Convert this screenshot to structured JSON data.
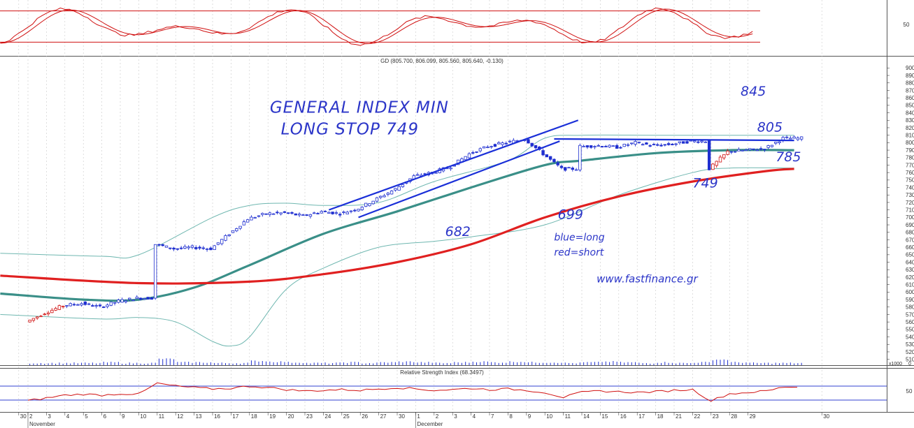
{
  "chart_data": {
    "type": "candlestick",
    "main": {
      "header": "GD (805.700, 806.099, 805.560, 805.640, -0.130)",
      "ylim": [
        505,
        905
      ],
      "yticks": [
        510,
        520,
        530,
        540,
        550,
        560,
        570,
        580,
        590,
        600,
        610,
        620,
        630,
        640,
        650,
        660,
        670,
        680,
        690,
        700,
        710,
        720,
        730,
        740,
        750,
        760,
        770,
        780,
        790,
        800,
        810,
        820,
        830,
        840,
        850,
        860,
        870,
        880,
        890,
        900
      ],
      "price_path": [
        {
          "day": 0,
          "v": 560
        },
        {
          "day": 1,
          "v": 572
        },
        {
          "day": 2,
          "v": 582
        },
        {
          "day": 3,
          "v": 585
        },
        {
          "day": 4,
          "v": 580
        },
        {
          "day": 5,
          "v": 588
        },
        {
          "day": 6,
          "v": 592
        },
        {
          "day": 7,
          "v": 664
        },
        {
          "day": 8,
          "v": 658
        },
        {
          "day": 9,
          "v": 660
        },
        {
          "day": 10,
          "v": 658
        },
        {
          "day": 11,
          "v": 678
        },
        {
          "day": 12,
          "v": 698
        },
        {
          "day": 13,
          "v": 705
        },
        {
          "day": 14,
          "v": 706
        },
        {
          "day": 15,
          "v": 702
        },
        {
          "day": 16,
          "v": 708
        },
        {
          "day": 17,
          "v": 705
        },
        {
          "day": 18,
          "v": 712
        },
        {
          "day": 19,
          "v": 725
        },
        {
          "day": 20,
          "v": 738
        },
        {
          "day": 21,
          "v": 755
        },
        {
          "day": 22,
          "v": 760
        },
        {
          "day": 23,
          "v": 768
        },
        {
          "day": 24,
          "v": 785
        },
        {
          "day": 25,
          "v": 795
        },
        {
          "day": 26,
          "v": 800
        },
        {
          "day": 27,
          "v": 805
        },
        {
          "day": 28,
          "v": 785
        },
        {
          "day": 29,
          "v": 765
        },
        {
          "day": 30,
          "v": 795
        },
        {
          "day": 31,
          "v": 796
        },
        {
          "day": 32,
          "v": 794
        },
        {
          "day": 33,
          "v": 800
        },
        {
          "day": 34,
          "v": 796
        },
        {
          "day": 35,
          "v": 798
        },
        {
          "day": 36,
          "v": 802
        },
        {
          "day": 37,
          "v": 765
        },
        {
          "day": 38,
          "v": 788
        },
        {
          "day": 39,
          "v": 790
        },
        {
          "day": 40,
          "v": 792
        },
        {
          "day": 41,
          "v": 806
        }
      ],
      "red_days": [
        0,
        1,
        37
      ],
      "teal_ma": [
        [
          -1.5,
          598
        ],
        [
          3,
          590
        ],
        [
          6,
          590
        ],
        [
          9,
          606
        ],
        [
          12,
          636
        ],
        [
          16,
          678
        ],
        [
          20,
          708
        ],
        [
          24,
          740
        ],
        [
          28,
          770
        ],
        [
          30,
          776
        ],
        [
          34,
          786
        ],
        [
          38,
          790
        ],
        [
          41.5,
          790
        ]
      ],
      "red_ma": [
        [
          -1.5,
          622
        ],
        [
          6,
          612
        ],
        [
          12,
          614
        ],
        [
          16,
          624
        ],
        [
          20,
          640
        ],
        [
          24,
          664
        ],
        [
          28,
          700
        ],
        [
          32,
          728
        ],
        [
          36,
          748
        ],
        [
          40,
          762
        ],
        [
          41.5,
          765
        ]
      ],
      "upper_band": [
        [
          -1.5,
          652
        ],
        [
          4,
          648
        ],
        [
          6,
          650
        ],
        [
          10,
          700
        ],
        [
          12,
          716
        ],
        [
          14,
          719
        ],
        [
          16,
          716
        ],
        [
          19,
          720
        ],
        [
          22,
          748
        ],
        [
          26,
          776
        ],
        [
          28,
          806
        ],
        [
          30,
          810
        ],
        [
          34,
          810
        ],
        [
          38,
          810
        ],
        [
          41.5,
          810
        ]
      ],
      "lower_band": [
        [
          -1.5,
          570
        ],
        [
          4,
          564
        ],
        [
          6,
          566
        ],
        [
          8,
          560
        ],
        [
          10,
          534
        ],
        [
          11,
          528
        ],
        [
          12,
          540
        ],
        [
          14,
          604
        ],
        [
          16,
          632
        ],
        [
          19,
          660
        ],
        [
          22,
          668
        ],
        [
          24,
          674
        ],
        [
          28,
          690
        ],
        [
          32,
          730
        ],
        [
          36,
          760
        ],
        [
          38,
          766
        ],
        [
          41.5,
          766
        ]
      ],
      "channel_upper": [
        [
          16.3,
          710
        ],
        [
          29.8,
          830
        ]
      ],
      "channel_lower": [
        [
          17.9,
          700
        ],
        [
          28.8,
          802
        ]
      ],
      "resistance": [
        [
          28.5,
          805
        ],
        [
          41.5,
          803
        ]
      ],
      "annotations": [
        {
          "text": "GENERAL INDEX MIN",
          "day": 13.1,
          "v": 840,
          "size": 23
        },
        {
          "text": "LONG STOP 749",
          "day": 13.7,
          "v": 811,
          "size": 23
        },
        {
          "text": "845",
          "day": 38.6,
          "v": 863,
          "size": 19
        },
        {
          "text": "805",
          "day": 39.5,
          "v": 815,
          "size": 19
        },
        {
          "text": "785",
          "day": 40.5,
          "v": 775,
          "size": 19
        },
        {
          "text": "749",
          "day": 36.0,
          "v": 740,
          "size": 19
        },
        {
          "text": "699",
          "day": 28.7,
          "v": 698,
          "size": 19
        },
        {
          "text": "682",
          "day": 22.6,
          "v": 675,
          "size": 19
        },
        {
          "text": "blue=long",
          "day": 28.5,
          "v": 669,
          "size": 14
        },
        {
          "text": "red=short",
          "day": 28.5,
          "v": 649,
          "size": 14
        },
        {
          "text": "www.fastfinance.gr",
          "day": 30.8,
          "v": 613,
          "size": 15
        }
      ]
    },
    "volume": {
      "label": "x1000",
      "ytick": "0",
      "values": [
        3,
        3,
        3,
        3,
        4,
        3,
        3,
        9,
        4,
        4,
        3,
        3,
        6,
        5,
        4,
        3,
        3,
        4,
        3,
        4,
        5,
        4,
        3,
        4,
        5,
        4,
        5,
        4,
        4,
        3,
        4,
        5,
        4,
        3,
        4,
        3,
        4,
        8,
        4,
        3,
        3,
        3
      ]
    },
    "rsi": {
      "header": "Relative Strength Index (68.3497)",
      "ytick": "50",
      "upper_level": 70,
      "lower_level": 30,
      "values": [
        28,
        36,
        44,
        47,
        44,
        48,
        47,
        78,
        70,
        66,
        62,
        64,
        70,
        66,
        60,
        56,
        58,
        60,
        58,
        62,
        66,
        62,
        58,
        60,
        64,
        60,
        62,
        58,
        52,
        38,
        52,
        56,
        54,
        52,
        54,
        58,
        60,
        28,
        48,
        52,
        56,
        68
      ]
    },
    "stoch": {
      "header": "",
      "ytick": "50",
      "upper_level": 85,
      "lower_level": 15
    },
    "x_labels": [
      {
        "day": -0.5,
        "label": "30"
      },
      {
        "day": 0,
        "label": "2"
      },
      {
        "day": 1,
        "label": "3"
      },
      {
        "day": 2,
        "label": "4"
      },
      {
        "day": 3,
        "label": "5"
      },
      {
        "day": 4,
        "label": "6"
      },
      {
        "day": 5,
        "label": "9"
      },
      {
        "day": 6,
        "label": "10"
      },
      {
        "day": 7,
        "label": "11"
      },
      {
        "day": 8,
        "label": "12"
      },
      {
        "day": 9,
        "label": "13"
      },
      {
        "day": 10,
        "label": "16"
      },
      {
        "day": 11,
        "label": "17"
      },
      {
        "day": 12,
        "label": "18"
      },
      {
        "day": 13,
        "label": "19"
      },
      {
        "day": 14,
        "label": "20"
      },
      {
        "day": 15,
        "label": "23"
      },
      {
        "day": 16,
        "label": "24"
      },
      {
        "day": 17,
        "label": "25"
      },
      {
        "day": 18,
        "label": "26"
      },
      {
        "day": 19,
        "label": "27"
      },
      {
        "day": 20,
        "label": "30"
      },
      {
        "day": 21,
        "label": "1"
      },
      {
        "day": 22,
        "label": "2"
      },
      {
        "day": 23,
        "label": "3"
      },
      {
        "day": 24,
        "label": "4"
      },
      {
        "day": 25,
        "label": "7"
      },
      {
        "day": 26,
        "label": "8"
      },
      {
        "day": 27,
        "label": "9"
      },
      {
        "day": 28,
        "label": "10"
      },
      {
        "day": 29,
        "label": "11"
      },
      {
        "day": 30,
        "label": "14"
      },
      {
        "day": 31,
        "label": "15"
      },
      {
        "day": 32,
        "label": "16"
      },
      {
        "day": 33,
        "label": "17"
      },
      {
        "day": 34,
        "label": "18"
      },
      {
        "day": 35,
        "label": "21"
      },
      {
        "day": 36,
        "label": "22"
      },
      {
        "day": 37,
        "label": "23"
      },
      {
        "day": 38,
        "label": "28"
      },
      {
        "day": 39,
        "label": "29"
      },
      {
        "day": 43,
        "label": "30"
      }
    ],
    "month_labels": [
      {
        "day": 0,
        "label": "November"
      },
      {
        "day": 21,
        "label": "December"
      }
    ],
    "colors": {
      "price_up": "#1f2fd0",
      "price_down": "#d01010",
      "teal_ma": "#3a8f88",
      "red_ma": "#e02020",
      "bands": "#6fb7b0",
      "trendlines": "#1a2fd8",
      "annotations": "#2b35c8",
      "oscillator": "#d01010",
      "osc_levels_top": "#d01010",
      "osc_levels_rsi": "#3040d0",
      "volume": "#1f2fd0",
      "grid": "#c8c8c8"
    }
  }
}
